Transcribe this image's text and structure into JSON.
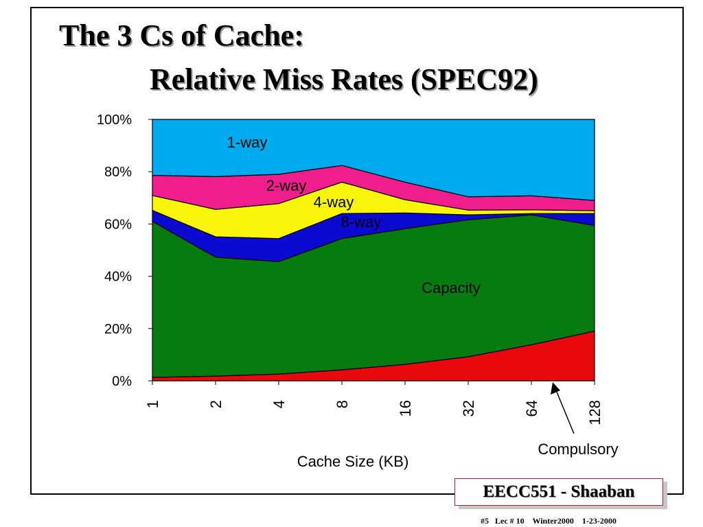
{
  "slide": {
    "title_line1": "The 3 Cs of Cache:",
    "title_line2": "Relative Miss Rates (SPEC92)",
    "badge": "EECC551 - Shaaban",
    "footer": "#5   Lec # 10    Winter2000    1-23-2000"
  },
  "chart_data": {
    "type": "area",
    "stacked": true,
    "title": "",
    "xlabel": "Cache Size (KB)",
    "ylabel": "",
    "x": [
      "1",
      "2",
      "4",
      "8",
      "16",
      "32",
      "64",
      "128"
    ],
    "ylim": [
      0,
      100
    ],
    "yticks": [
      "0%",
      "20%",
      "40%",
      "60%",
      "80%",
      "100%"
    ],
    "series": [
      {
        "name": "Compulsory",
        "color": "#e8090c",
        "cumulative": [
          1.3,
          1.8,
          2.6,
          4.2,
          6.3,
          9.2,
          13.8,
          19.0
        ]
      },
      {
        "name": "Capacity",
        "color": "#067c10",
        "cumulative": [
          61.0,
          47.3,
          45.6,
          54.4,
          58.2,
          61.6,
          63.5,
          59.4
        ]
      },
      {
        "name": "8-way",
        "color": "#0a0ad0",
        "cumulative": [
          65.2,
          55.1,
          54.4,
          64.0,
          64.2,
          63.5,
          64.0,
          64.0
        ]
      },
      {
        "name": "4-way",
        "color": "#f8f40a",
        "cumulative": [
          70.9,
          65.6,
          67.8,
          76.0,
          69.3,
          65.3,
          65.4,
          65.1
        ]
      },
      {
        "name": "2-way",
        "color": "#f01d8c",
        "cumulative": [
          78.6,
          78.1,
          79.0,
          82.4,
          76.0,
          70.4,
          70.8,
          69.0
        ]
      },
      {
        "name": "1-way",
        "color": "#00aaee",
        "cumulative": [
          100,
          100,
          100,
          100,
          100,
          100,
          100,
          100
        ]
      }
    ],
    "area_labels": [
      {
        "text": "1-way"
      },
      {
        "text": "2-way"
      },
      {
        "text": "4-way"
      },
      {
        "text": "8-way"
      },
      {
        "text": "Capacity"
      }
    ],
    "callout_label": "Compulsory",
    "grid": false,
    "legend": "none"
  }
}
